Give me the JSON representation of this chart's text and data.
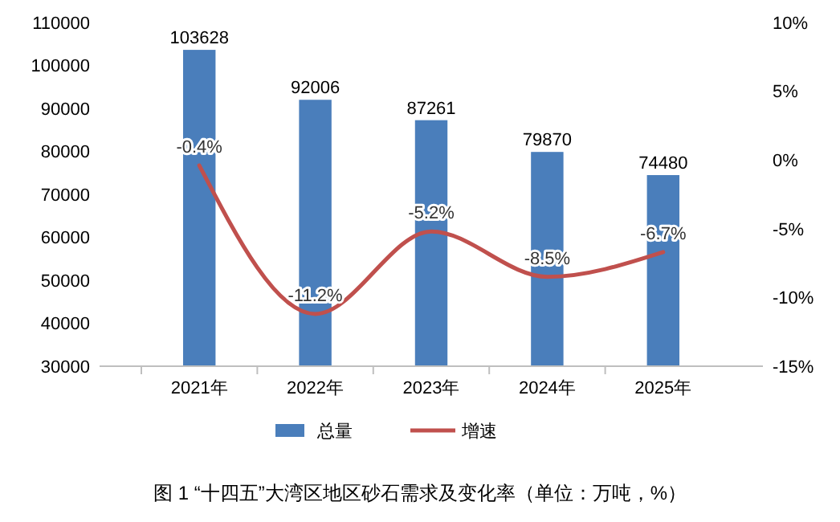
{
  "chart_data": {
    "type": "bar",
    "title": "图 1 “十四五”大湾区地区砂石需求及变化率（单位：万吨，%）",
    "categories": [
      "2021年",
      "2022年",
      "2023年",
      "2024年",
      "2025年"
    ],
    "series": [
      {
        "name": "总量",
        "color": "#4a7ebb",
        "values": [
          103628,
          92006,
          87261,
          79870,
          74480
        ],
        "value_labels": [
          "103628",
          "92006",
          "87261",
          "79870",
          "74480"
        ]
      },
      {
        "name": "增速",
        "type": "line",
        "axis": "y2",
        "color": "#c0504d",
        "values": [
          -0.4,
          -11.2,
          -5.2,
          -8.5,
          -6.7
        ],
        "value_labels": [
          "-0.4%",
          "-11.2%",
          "-5.2%",
          "-8.5%",
          "-6.7%"
        ]
      }
    ],
    "ylim": [
      30000,
      110000
    ],
    "yticks": [
      30000,
      40000,
      50000,
      60000,
      70000,
      80000,
      90000,
      100000,
      110000
    ],
    "y2lim": [
      -15,
      10
    ],
    "y2ticks": [
      {
        "value": -15,
        "label": "-15%"
      },
      {
        "value": -10,
        "label": "-10%"
      },
      {
        "value": -5,
        "label": "-5%"
      },
      {
        "value": 0,
        "label": "0%"
      },
      {
        "value": 5,
        "label": "5%"
      },
      {
        "value": 10,
        "label": "10%"
      }
    ],
    "legend": "bottom"
  }
}
